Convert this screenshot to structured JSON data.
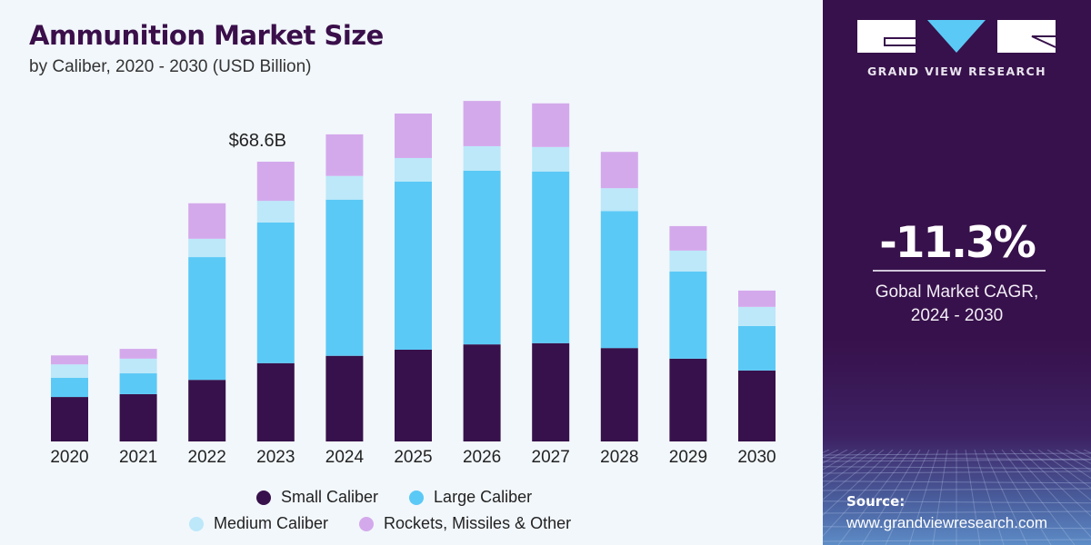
{
  "header": {
    "title": "Ammunition Market Size",
    "subtitle": "by Caliber, 2020 - 2030 (USD Billion)"
  },
  "colors": {
    "small_caliber": "#37114b",
    "large_caliber": "#5bc9f6",
    "medium_caliber": "#bce8f9",
    "rockets_missiles_other": "#d4a9ec",
    "panel_bg": "#37114b",
    "accent_blue": "#5bc9f6"
  },
  "chart_data": {
    "type": "bar",
    "stacked": true,
    "title": "Ammunition Market Size",
    "subtitle": "by Caliber, 2020 - 2030 (USD Billion)",
    "xlabel": "",
    "ylabel": "USD Billion",
    "grid": false,
    "ylim": [
      0,
      85
    ],
    "legend_position": "bottom",
    "categories": [
      "2020",
      "2021",
      "2022",
      "2023",
      "2024",
      "2025",
      "2026",
      "2027",
      "2028",
      "2029",
      "2030"
    ],
    "series": [
      {
        "name": "Small Caliber",
        "color": "#37114b",
        "values": [
          10.9,
          11.6,
          15.1,
          19.2,
          21.0,
          22.5,
          23.8,
          24.1,
          22.9,
          20.3,
          17.4
        ]
      },
      {
        "name": "Large Caliber",
        "color": "#5bc9f6",
        "values": [
          4.7,
          5.1,
          30.1,
          34.5,
          38.3,
          41.2,
          42.6,
          42.1,
          33.6,
          21.4,
          10.9
        ]
      },
      {
        "name": "Medium Caliber",
        "color": "#bce8f9",
        "values": [
          3.3,
          3.6,
          4.5,
          5.3,
          5.8,
          5.8,
          6.0,
          6.0,
          5.6,
          5.1,
          4.7
        ]
      },
      {
        "name": "Rockets, Missiles & Other",
        "color": "#d4a9ec",
        "values": [
          2.2,
          2.4,
          8.7,
          9.6,
          10.2,
          10.9,
          11.1,
          10.7,
          8.9,
          6.0,
          4.0
        ]
      }
    ],
    "annotations": [
      {
        "category": "2023",
        "text": "$68.6B"
      }
    ]
  },
  "legend": {
    "row1": [
      {
        "label": "Small Caliber",
        "color": "#37114b"
      },
      {
        "label": "Large Caliber",
        "color": "#5bc9f6"
      }
    ],
    "row2": [
      {
        "label": "Medium Caliber",
        "color": "#bce8f9"
      },
      {
        "label": "Rockets, Missiles & Other",
        "color": "#d4a9ec"
      }
    ]
  },
  "sidebar": {
    "brand": "GRAND VIEW RESEARCH",
    "cagr_value": "-11.3%",
    "cagr_label_line1": "Gobal Market CAGR,",
    "cagr_label_line2": "2024 - 2030",
    "source_label": "Source:",
    "source_url": "www.grandviewresearch.com"
  }
}
